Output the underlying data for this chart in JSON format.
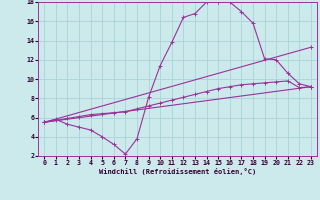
{
  "xlabel": "Windchill (Refroidissement éolien,°C)",
  "background_color": "#cce9ec",
  "grid_color": "#aad4d8",
  "line_color": "#993399",
  "xlim": [
    -0.5,
    23.5
  ],
  "ylim": [
    2,
    18
  ],
  "xticks": [
    0,
    1,
    2,
    3,
    4,
    5,
    6,
    7,
    8,
    9,
    10,
    11,
    12,
    13,
    14,
    15,
    16,
    17,
    18,
    19,
    20,
    21,
    22,
    23
  ],
  "yticks": [
    2,
    4,
    6,
    8,
    10,
    12,
    14,
    16,
    18
  ],
  "line1_x": [
    0,
    1,
    2,
    3,
    4,
    5,
    6,
    7,
    8,
    9,
    10,
    11,
    12,
    13,
    14,
    15,
    16,
    17,
    18,
    19,
    20,
    21,
    22,
    23
  ],
  "line1_y": [
    5.5,
    5.8,
    5.3,
    5.0,
    4.7,
    4.0,
    3.2,
    2.2,
    3.8,
    8.1,
    11.4,
    13.8,
    16.4,
    16.8,
    18.0,
    18.0,
    18.0,
    17.0,
    15.8,
    12.1,
    12.0,
    10.6,
    9.5,
    9.2
  ],
  "line2_x": [
    0,
    23
  ],
  "line2_y": [
    5.5,
    9.2
  ],
  "line3_x": [
    0,
    23
  ],
  "line3_y": [
    5.5,
    13.3
  ],
  "line4_x": [
    0,
    1,
    2,
    3,
    4,
    5,
    6,
    7,
    8,
    9,
    10,
    11,
    12,
    13,
    14,
    15,
    16,
    17,
    18,
    19,
    20,
    21,
    22,
    23
  ],
  "line4_y": [
    5.5,
    5.7,
    5.9,
    6.1,
    6.3,
    6.4,
    6.5,
    6.6,
    6.9,
    7.2,
    7.5,
    7.8,
    8.1,
    8.4,
    8.7,
    9.0,
    9.2,
    9.4,
    9.5,
    9.6,
    9.7,
    9.8,
    9.1,
    9.2
  ]
}
